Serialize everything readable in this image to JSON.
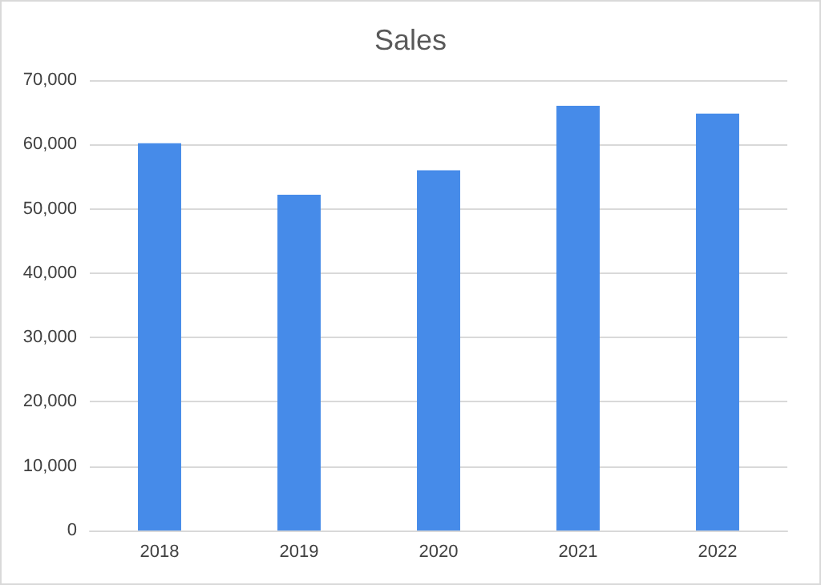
{
  "chart_data": {
    "type": "bar",
    "title": "Sales",
    "categories": [
      "2018",
      "2019",
      "2020",
      "2021",
      "2022"
    ],
    "values": [
      60200,
      52200,
      56000,
      66000,
      64800
    ],
    "color": "#468be9",
    "ylim": [
      0,
      70000
    ],
    "yticks": [
      {
        "value": 0,
        "label": "0"
      },
      {
        "value": 10000,
        "label": "10,000"
      },
      {
        "value": 20000,
        "label": "20,000"
      },
      {
        "value": 30000,
        "label": "30,000"
      },
      {
        "value": 40000,
        "label": "40,000"
      },
      {
        "value": 50000,
        "label": "50,000"
      },
      {
        "value": 60000,
        "label": "60,000"
      },
      {
        "value": 70000,
        "label": "70,000"
      }
    ],
    "grid": true
  }
}
